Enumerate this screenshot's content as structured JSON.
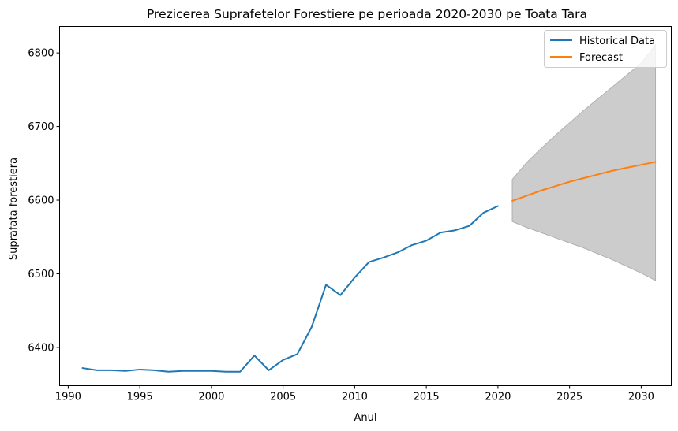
{
  "chart_data": {
    "type": "line",
    "title": "Prezicerea Suprafetelor Forestiere pe perioada 2020-2030 pe Toata Tara",
    "xlabel": "Anul",
    "ylabel": "Suprafata forestiera",
    "xlim": [
      1989.4,
      2032.1
    ],
    "ylim": [
      6348,
      6836
    ],
    "xticks": [
      1990,
      1995,
      2000,
      2005,
      2010,
      2015,
      2020,
      2025,
      2030
    ],
    "yticks": [
      6400,
      6500,
      6600,
      6700,
      6800
    ],
    "grid": false,
    "legend_position": "top-right",
    "series": [
      {
        "name": "Historical Data",
        "color": "#1f77b4",
        "x": [
          1991,
          1992,
          1993,
          1994,
          1995,
          1996,
          1997,
          1998,
          1999,
          2000,
          2001,
          2002,
          2003,
          2004,
          2005,
          2006,
          2007,
          2008,
          2009,
          2010,
          2011,
          2012,
          2013,
          2014,
          2015,
          2016,
          2017,
          2018,
          2019,
          2020
        ],
        "y": [
          6372,
          6369,
          6369,
          6368,
          6370,
          6369,
          6367,
          6368,
          6368,
          6368,
          6367,
          6367,
          6389,
          6369,
          6383,
          6391,
          6428,
          6485,
          6471,
          6495,
          6516,
          6522,
          6529,
          6539,
          6545,
          6556,
          6559,
          6565,
          6583,
          6592
        ]
      },
      {
        "name": "Forecast",
        "color": "#ff7f0e",
        "x": [
          2021,
          2022,
          2023,
          2024,
          2025,
          2026,
          2027,
          2028,
          2029,
          2030,
          2031
        ],
        "y": [
          6599,
          6606,
          6613,
          6619,
          6625,
          6630,
          6635,
          6640,
          6644,
          6648,
          6652
        ]
      }
    ],
    "confidence_band": {
      "color": "#cccccc",
      "x": [
        2021,
        2022,
        2023,
        2024,
        2025,
        2026,
        2027,
        2028,
        2029,
        2030,
        2031
      ],
      "lower": [
        6571,
        6563,
        6556,
        6549,
        6542,
        6535,
        6527,
        6519,
        6510,
        6501,
        6491
      ],
      "upper": [
        6628,
        6651,
        6670,
        6688,
        6705,
        6722,
        6738,
        6754,
        6770,
        6786,
        6811
      ]
    }
  }
}
